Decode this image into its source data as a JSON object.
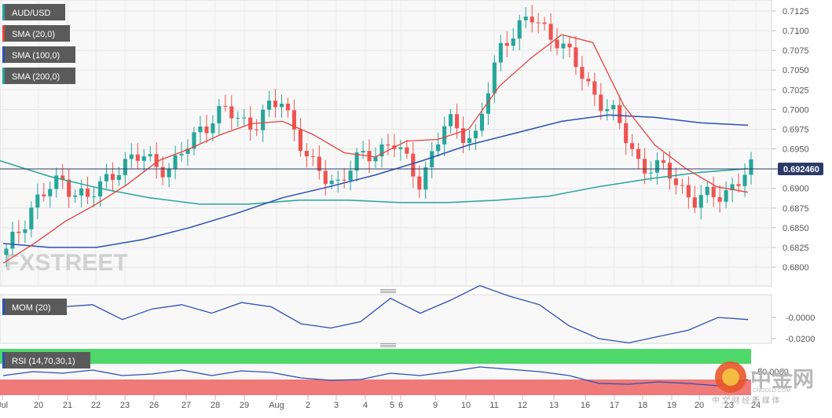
{
  "chart_data": {
    "type": "candlestick",
    "symbol": "AUD/USD",
    "legend": [
      {
        "label": "AUD/USD",
        "color": "#5a5a5a",
        "swatch": "#26a69a"
      },
      {
        "label": "SMA (20,0)",
        "color": "#5a5a5a",
        "swatch": "#e8413c"
      },
      {
        "label": "SMA (100,0)",
        "color": "#5a5a5a",
        "swatch": "#2c4fb4"
      },
      {
        "label": "SMA (200,0)",
        "color": "#5a5a5a",
        "swatch": "#26a69a"
      }
    ],
    "price_axis": {
      "ticks": [
        "0.7125",
        "0.7100",
        "0.7075",
        "0.7050",
        "0.7025",
        "0.7000",
        "0.6975",
        "0.6950",
        "0.6900",
        "0.6875",
        "0.6850",
        "0.6825",
        "0.6800"
      ],
      "ylim": [
        0.6785,
        0.714
      ],
      "last_price": "0.692460"
    },
    "x_labels": [
      "Jul",
      "20",
      "21",
      "22",
      "23",
      "26",
      "27",
      "28",
      "29",
      "Aug",
      "2",
      "3",
      "4",
      "5",
      "6",
      "9",
      "10",
      "11",
      "12",
      "13",
      "16",
      "17",
      "18",
      "19",
      "20",
      "23",
      "24"
    ],
    "sma20": [
      0.6805,
      0.683,
      0.6858,
      0.688,
      0.6905,
      0.6935,
      0.695,
      0.6968,
      0.6982,
      0.6985,
      0.6968,
      0.6945,
      0.694,
      0.696,
      0.6962,
      0.6975,
      0.703,
      0.7065,
      0.7095,
      0.7085,
      0.7005,
      0.6955,
      0.6925,
      0.6902,
      0.6895
    ],
    "sma100": [
      0.683,
      0.6825,
      0.6825,
      0.6835,
      0.685,
      0.6868,
      0.6888,
      0.6902,
      0.6917,
      0.6935,
      0.6955,
      0.697,
      0.6985,
      0.6993,
      0.699,
      0.6983,
      0.698
    ],
    "sma200": [
      0.6935,
      0.6915,
      0.69,
      0.6888,
      0.688,
      0.688,
      0.6885,
      0.6885,
      0.6882,
      0.6882,
      0.6885,
      0.689,
      0.6902,
      0.6912,
      0.692,
      0.6925
    ],
    "mom": {
      "label": "MOM (20)",
      "ticks": [
        "-0.0000",
        "-0.0200"
      ],
      "values": [
        0.4,
        0.8,
        0.5,
        0.6,
        -0.1,
        0.4,
        0.6,
        0.2,
        0.7,
        0.5,
        -0.3,
        -0.5,
        -0.2,
        0.9,
        0.2,
        0.8,
        1.5,
        1.0,
        0.6,
        -0.4,
        -1.0,
        -1.2,
        -0.9,
        -0.6,
        0.0,
        -0.1
      ]
    },
    "rsi": {
      "label": "RSI (14,70,30,1)",
      "ticks": [
        "50.0000"
      ],
      "values": [
        55,
        60,
        58,
        62,
        55,
        57,
        62,
        55,
        61,
        59,
        52,
        49,
        50,
        58,
        55,
        60,
        66,
        63,
        60,
        55,
        45,
        44,
        47,
        45,
        42,
        50
      ]
    },
    "watermarks": {
      "brand_left": "FXSTREET",
      "brand_right": "中金网",
      "brand_right_sub": "CNGOLD.COM",
      "brand_right_tag": "中 文 财 经 新 媒 体"
    }
  }
}
